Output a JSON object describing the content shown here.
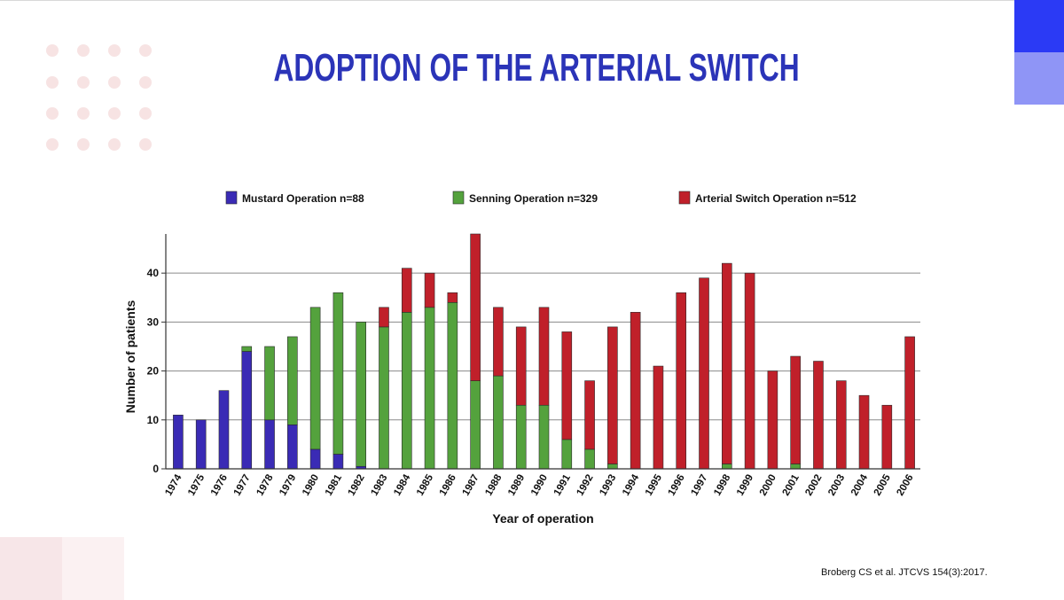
{
  "slide": {
    "title": "ADOPTION OF THE ARTERIAL SWITCH",
    "citation": "Broberg CS et al. JTCVS 154(3):2017.",
    "colors": {
      "title": "#2b34b8",
      "accent_dark": "#2b3af5",
      "accent_light": "#8f95f6",
      "decor_pink": "#f7e3e3"
    }
  },
  "chart_data": {
    "type": "bar",
    "stacked": true,
    "xlabel": "Year of operation",
    "ylabel": "Number of patients",
    "ylim": [
      0,
      48
    ],
    "yticks": [
      0,
      10,
      20,
      30,
      40
    ],
    "grid": true,
    "legend_position": "top",
    "categories": [
      "1974",
      "1975",
      "1976",
      "1977",
      "1978",
      "1979",
      "1980",
      "1981",
      "1982",
      "1983",
      "1984",
      "1985",
      "1986",
      "1987",
      "1988",
      "1989",
      "1990",
      "1991",
      "1992",
      "1993",
      "1994",
      "1995",
      "1996",
      "1997",
      "1998",
      "1999",
      "2000",
      "2001",
      "2002",
      "2003",
      "2004",
      "2005",
      "2006"
    ],
    "series": [
      {
        "name": "Mustard Operation n=88",
        "color": "#3a2bb5",
        "values": [
          11,
          10,
          16,
          24,
          10,
          9,
          4,
          3,
          0.5,
          0,
          0,
          0,
          0,
          0,
          0,
          0,
          0,
          0,
          0,
          0,
          0,
          0,
          0,
          0,
          0,
          0,
          0,
          0,
          0,
          0,
          0,
          0,
          0
        ]
      },
      {
        "name": "Senning Operation n=329",
        "color": "#54a23d",
        "values": [
          0,
          0,
          0,
          1,
          15,
          18,
          29,
          33,
          29.5,
          29,
          32,
          33,
          34,
          18,
          19,
          13,
          13,
          6,
          4,
          1,
          0,
          0,
          0,
          0,
          1,
          0,
          0,
          1,
          0,
          0,
          0,
          0,
          0
        ]
      },
      {
        "name": "Arterial Switch Operation n=512",
        "color": "#c0202a",
        "values": [
          0,
          0,
          0,
          0,
          0,
          0,
          0,
          0,
          0,
          4,
          9,
          7,
          2,
          30,
          14,
          16,
          20,
          22,
          14,
          28,
          32,
          21,
          36,
          39,
          41,
          40,
          20,
          22,
          22,
          18,
          15,
          13,
          27
        ]
      }
    ]
  }
}
